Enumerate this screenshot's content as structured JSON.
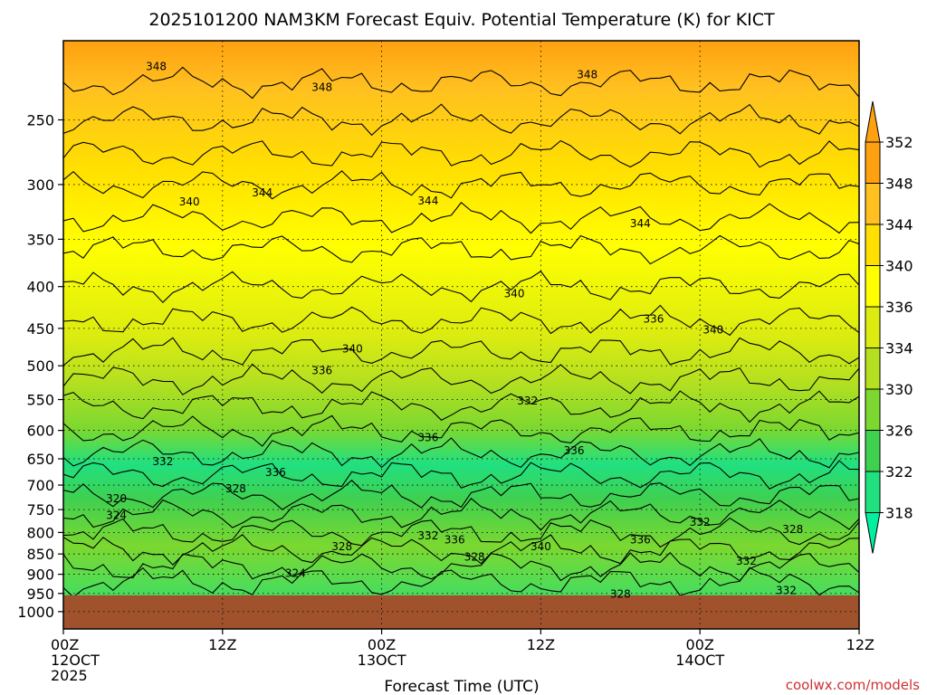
{
  "chart_data": {
    "type": "heatmap",
    "title": "2025101200 NAM3KM Forecast Equiv. Potential Temperature (K) for KICT",
    "xlabel": "Forecast Time (UTC)",
    "ylabel": "",
    "credit": "coolwx.com/models",
    "x_ticks": [
      {
        "hour": 0,
        "lines": [
          "00Z",
          "12OCT",
          "2025"
        ]
      },
      {
        "hour": 12,
        "lines": [
          "12Z"
        ]
      },
      {
        "hour": 24,
        "lines": [
          "00Z",
          "13OCT"
        ]
      },
      {
        "hour": 36,
        "lines": [
          "12Z"
        ]
      },
      {
        "hour": 48,
        "lines": [
          "00Z",
          "14OCT"
        ]
      },
      {
        "hour": 60,
        "lines": [
          "12Z"
        ]
      }
    ],
    "xlim": [
      0,
      60
    ],
    "y_ticks": [
      "250",
      "300",
      "350",
      "400",
      "450",
      "500",
      "550",
      "600",
      "650",
      "700",
      "750",
      "800",
      "850",
      "900",
      "950",
      "1000"
    ],
    "ylim": [
      200,
      1050
    ],
    "yscale": "log",
    "ground_pressure": 955,
    "colorbar": {
      "levels": [
        318,
        322,
        326,
        330,
        334,
        336,
        340,
        344,
        348,
        352
      ],
      "labels": [
        "318",
        "322",
        "326",
        "330",
        "334",
        "336",
        "340",
        "344",
        "348",
        "352"
      ],
      "colors": [
        "#00f0a0",
        "#20e080",
        "#40d050",
        "#7cd830",
        "#b4e020",
        "#dcec10",
        "#ffff00",
        "#ffe000",
        "#ffc020",
        "#ffa010"
      ],
      "extend": "both"
    },
    "contour_labels": [
      {
        "text": "348",
        "hour": 7,
        "p": 215
      },
      {
        "hour": 19.5,
        "p": 228,
        "text": "348"
      },
      {
        "hour": 39.5,
        "p": 220,
        "text": "348"
      },
      {
        "hour": 9.5,
        "p": 315,
        "text": "340"
      },
      {
        "hour": 15,
        "p": 307,
        "text": "344"
      },
      {
        "hour": 27.5,
        "p": 314,
        "text": "344"
      },
      {
        "hour": 43.5,
        "p": 335,
        "text": "344"
      },
      {
        "hour": 34,
        "p": 408,
        "text": "340"
      },
      {
        "hour": 44.5,
        "p": 438,
        "text": "336"
      },
      {
        "hour": 49,
        "p": 452,
        "text": "340"
      },
      {
        "hour": 21.8,
        "p": 477,
        "text": "340"
      },
      {
        "hour": 19.5,
        "p": 507,
        "text": "336"
      },
      {
        "hour": 35,
        "p": 552,
        "text": "332"
      },
      {
        "hour": 27.5,
        "p": 612,
        "text": "336"
      },
      {
        "hour": 38.5,
        "p": 635,
        "text": "336"
      },
      {
        "hour": 7.5,
        "p": 655,
        "text": "332"
      },
      {
        "hour": 16,
        "p": 675,
        "text": "336"
      },
      {
        "hour": 13,
        "p": 707,
        "text": "328"
      },
      {
        "hour": 4,
        "p": 727,
        "text": "320"
      },
      {
        "hour": 4,
        "p": 762,
        "text": "324"
      },
      {
        "hour": 48,
        "p": 777,
        "text": "332"
      },
      {
        "hour": 55,
        "p": 793,
        "text": "328"
      },
      {
        "hour": 27.5,
        "p": 807,
        "text": "332"
      },
      {
        "hour": 29.5,
        "p": 817,
        "text": "336"
      },
      {
        "hour": 21,
        "p": 832,
        "text": "328"
      },
      {
        "hour": 36,
        "p": 832,
        "text": "340"
      },
      {
        "hour": 43.5,
        "p": 817,
        "text": "336"
      },
      {
        "hour": 31,
        "p": 857,
        "text": "328"
      },
      {
        "hour": 51.5,
        "p": 867,
        "text": "332"
      },
      {
        "hour": 17.5,
        "p": 898,
        "text": "324"
      },
      {
        "hour": 42,
        "p": 952,
        "text": "328"
      },
      {
        "hour": 54.5,
        "p": 942,
        "text": "332"
      }
    ]
  }
}
